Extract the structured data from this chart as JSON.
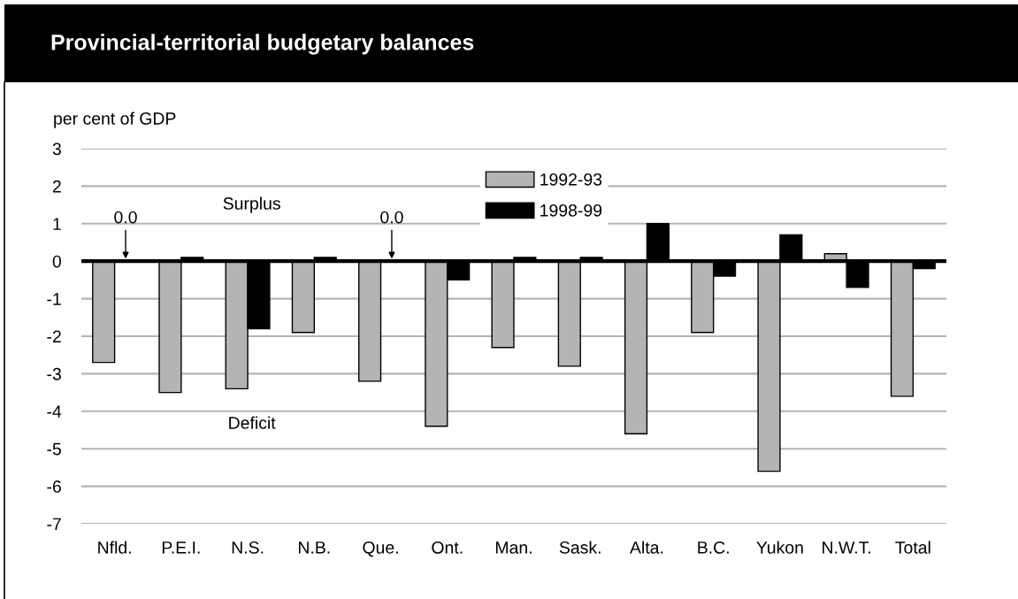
{
  "chart_data": {
    "type": "bar",
    "title": "Provincial-territorial budgetary balances",
    "ylabel": "per cent of GDP",
    "categories": [
      "Nfld.",
      "P.E.I.",
      "N.S.",
      "N.B.",
      "Que.",
      "Ont.",
      "Man.",
      "Sask.",
      "Alta.",
      "B.C.",
      "Yukon",
      "N.W.T.",
      "Total"
    ],
    "series": [
      {
        "name": "1992-93",
        "color": "#b4b4b4",
        "values": [
          -2.7,
          -3.5,
          -3.4,
          -1.9,
          -3.2,
          -4.4,
          -2.3,
          -2.8,
          -4.6,
          -1.9,
          -5.6,
          0.2,
          -3.6
        ]
      },
      {
        "name": "1998-99",
        "color": "#000000",
        "values": [
          0.0,
          0.1,
          -1.8,
          0.1,
          0.0,
          -0.5,
          0.1,
          0.1,
          1.0,
          -0.4,
          0.7,
          -0.7,
          -0.2
        ]
      }
    ],
    "ylim": [
      -7,
      3
    ],
    "yticks": [
      -7,
      -6,
      -5,
      -4,
      -3,
      -2,
      -1,
      0,
      1,
      2,
      3
    ],
    "grid": "y",
    "legend": "top",
    "ref_lines": [
      {
        "axis": "y",
        "value": 0,
        "color": "#000000"
      }
    ],
    "annotations": [
      "Surplus",
      "Deficit",
      {
        "text": "0.0",
        "x": "Nfld.",
        "y": 0
      },
      {
        "text": "0.0",
        "x": "Que.",
        "y": 0
      }
    ]
  }
}
